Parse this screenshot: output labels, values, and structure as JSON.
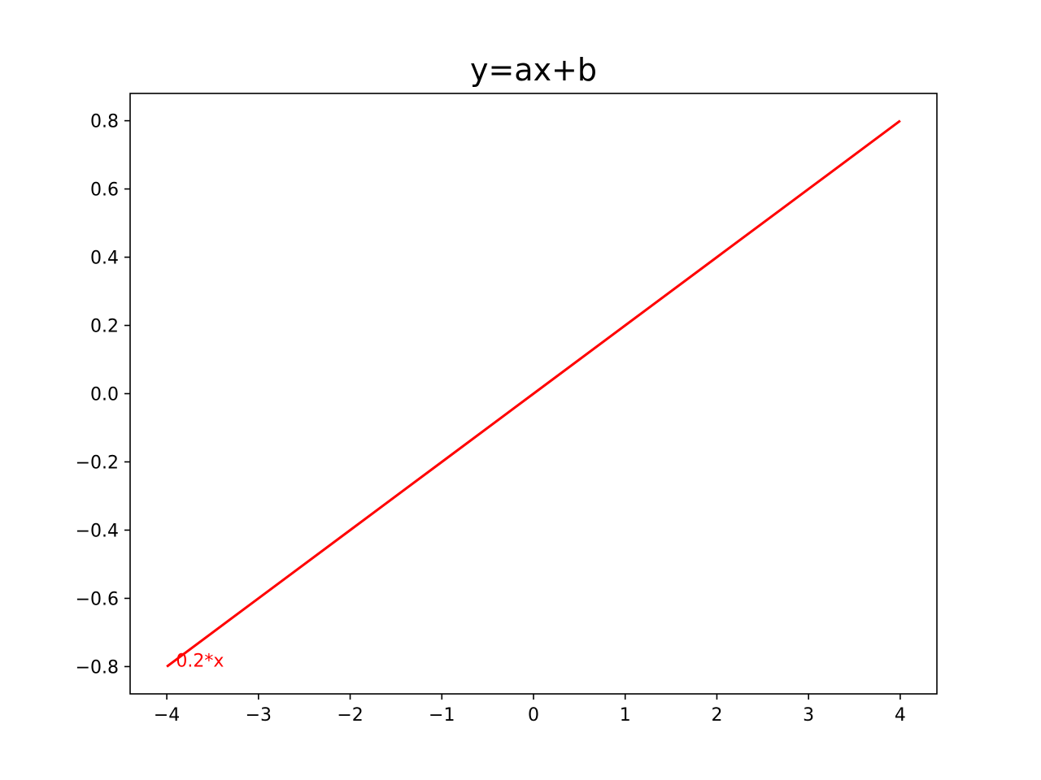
{
  "chart_data": {
    "type": "line",
    "title": "y=ax+b",
    "xlabel": "",
    "ylabel": "",
    "xlim": [
      -4.4,
      4.4
    ],
    "ylim": [
      -0.88,
      0.88
    ],
    "grid": false,
    "x_ticks": [
      -4,
      -3,
      -2,
      -1,
      0,
      1,
      2,
      3,
      4
    ],
    "x_tick_labels": [
      "−4",
      "−3",
      "−2",
      "−1",
      "0",
      "1",
      "2",
      "3",
      "4"
    ],
    "y_ticks": [
      -0.8,
      -0.6,
      -0.4,
      -0.2,
      0.0,
      0.2,
      0.4,
      0.6,
      0.8
    ],
    "y_tick_labels": [
      "−0.8",
      "−0.6",
      "−0.4",
      "−0.2",
      "0.0",
      "0.2",
      "0.4",
      "0.6",
      "0.8"
    ],
    "series": [
      {
        "color": "#ff0000",
        "x": [
          -4,
          -3,
          -2,
          -1,
          0,
          1,
          2,
          3,
          4
        ],
        "y": [
          -0.8,
          -0.6,
          -0.4,
          -0.2,
          0.0,
          0.2,
          0.4,
          0.6,
          0.8
        ]
      }
    ],
    "annotations": [
      {
        "text": "0.2*x",
        "x": -3.9,
        "y": -0.8,
        "color": "#ff0000"
      }
    ]
  }
}
